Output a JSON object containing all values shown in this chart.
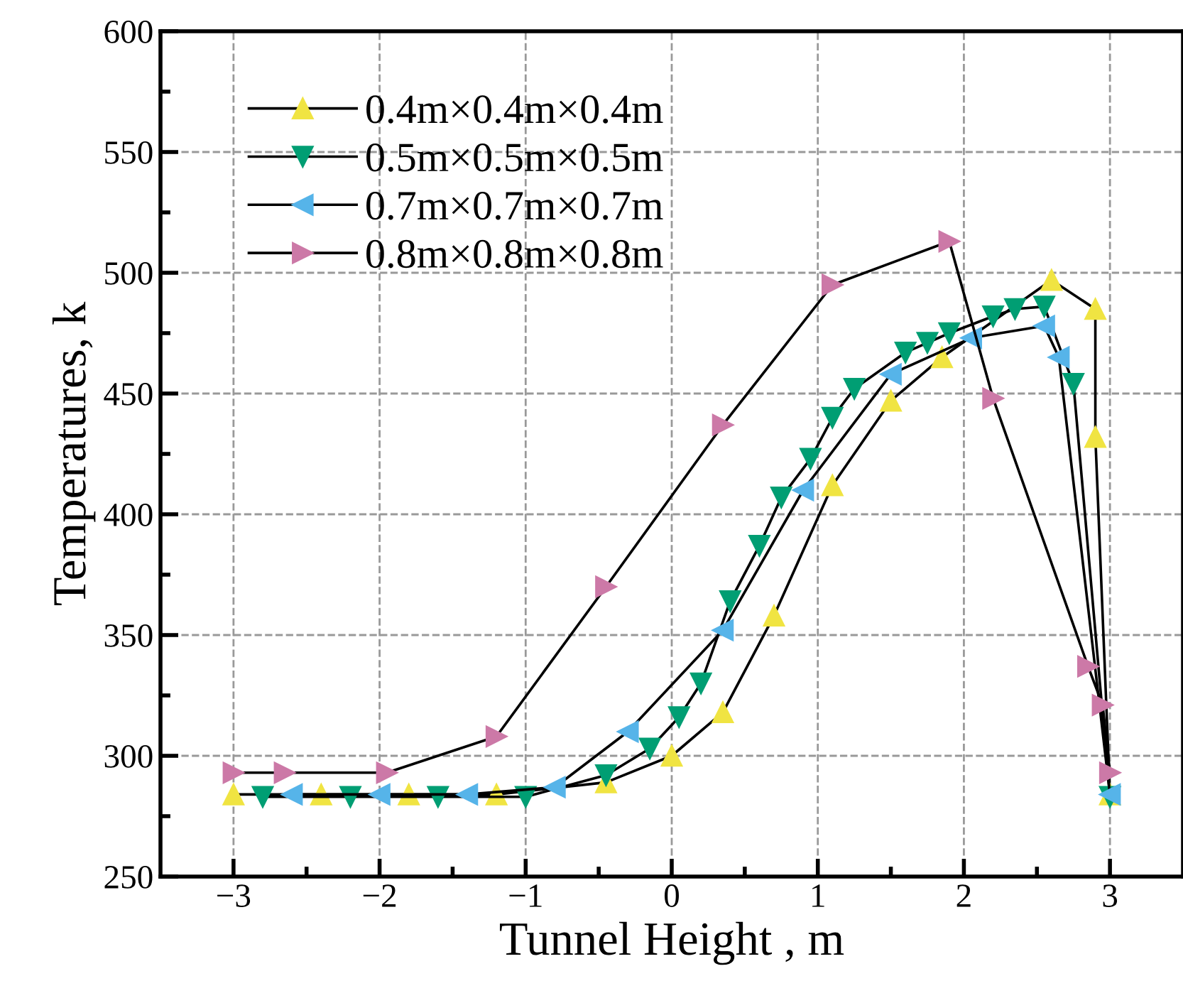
{
  "chart_data": {
    "type": "line",
    "xlabel": "Tunnel Height , m",
    "ylabel": "Temperatures, k",
    "xlim": [
      -3.5,
      3.5
    ],
    "ylim": [
      250,
      600
    ],
    "xticks": [
      {
        "value": -3,
        "label": "−3"
      },
      {
        "value": -2.5,
        "label": null
      },
      {
        "value": -2,
        "label": "−2"
      },
      {
        "value": -1.5,
        "label": null
      },
      {
        "value": -1,
        "label": "−1"
      },
      {
        "value": -0.5,
        "label": null
      },
      0,
      {
        "value": 0.5,
        "label": null
      },
      1,
      {
        "value": 1.5,
        "label": null
      },
      2,
      {
        "value": 2.5,
        "label": null
      },
      3
    ],
    "yticks": [
      250,
      {
        "value": 275,
        "label": null
      },
      300,
      {
        "value": 325,
        "label": null
      },
      350,
      {
        "value": 375,
        "label": null
      },
      400,
      {
        "value": 425,
        "label": null
      },
      450,
      {
        "value": 475,
        "label": null
      },
      500,
      {
        "value": 525,
        "label": null
      },
      550,
      {
        "value": 575,
        "label": null
      },
      600
    ],
    "grid": true,
    "legend": "top left",
    "line_style": "solid",
    "series": [
      {
        "name": "0.4m×0.4m×0.4m",
        "color": "#f0e442",
        "marker": "triangle_up",
        "x": [
          -3,
          -2.4,
          -1.8,
          -1.2,
          -0.45,
          0.0,
          0.35,
          0.7,
          1.1,
          1.5,
          1.85,
          2.6,
          2.9,
          2.9,
          3.0
        ],
        "values": [
          284,
          284,
          284,
          284,
          289,
          300,
          318,
          358,
          412,
          447,
          465,
          497,
          485,
          432,
          284
        ]
      },
      {
        "name": "0.5m×0.5m×0.5m",
        "color": "#009e73",
        "marker": "triangle_down",
        "x": [
          -2.8,
          -2.2,
          -1.6,
          -1.0,
          -0.45,
          -0.15,
          0.05,
          0.2,
          0.4,
          0.6,
          0.75,
          0.95,
          1.1,
          1.25,
          1.6,
          1.75,
          1.9,
          2.2,
          2.35,
          2.55,
          2.75,
          3.0
        ],
        "values": [
          283,
          283,
          283,
          283,
          292,
          303,
          316,
          330,
          364,
          387,
          407,
          423,
          440,
          452,
          467,
          471,
          475,
          482,
          485,
          486,
          454,
          283
        ]
      },
      {
        "name": "0.7m×0.7m×0.7m",
        "color": "#56b4e9",
        "marker": "triangle_left",
        "x": [
          -2.6,
          -2.0,
          -1.4,
          -0.8,
          -0.3,
          0.35,
          0.9,
          1.5,
          2.05,
          2.55,
          2.65,
          3.0
        ],
        "values": [
          284,
          284,
          284,
          287,
          310,
          352,
          410,
          458,
          473,
          478,
          465,
          284
        ]
      },
      {
        "name": "0.8m×0.8m×0.8m",
        "color": "#cc79a7",
        "marker": "triangle_right",
        "x": [
          -3,
          -2.65,
          -1.95,
          -1.2,
          -0.45,
          0.35,
          1.1,
          1.9,
          2.2,
          2.85,
          2.95,
          3.0
        ],
        "values": [
          293,
          293,
          293,
          308,
          370,
          437,
          495,
          513,
          448,
          337,
          321,
          293
        ]
      }
    ]
  }
}
